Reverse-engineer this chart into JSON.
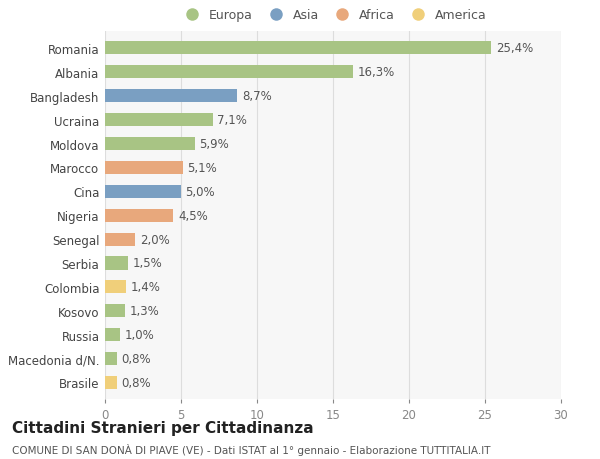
{
  "countries": [
    "Romania",
    "Albania",
    "Bangladesh",
    "Ucraina",
    "Moldova",
    "Marocco",
    "Cina",
    "Nigeria",
    "Senegal",
    "Serbia",
    "Colombia",
    "Kosovo",
    "Russia",
    "Macedonia d/N.",
    "Brasile"
  ],
  "values": [
    25.4,
    16.3,
    8.7,
    7.1,
    5.9,
    5.1,
    5.0,
    4.5,
    2.0,
    1.5,
    1.4,
    1.3,
    1.0,
    0.8,
    0.8
  ],
  "labels": [
    "25,4%",
    "16,3%",
    "8,7%",
    "7,1%",
    "5,9%",
    "5,1%",
    "5,0%",
    "4,5%",
    "2,0%",
    "1,5%",
    "1,4%",
    "1,3%",
    "1,0%",
    "0,8%",
    "0,8%"
  ],
  "regions": [
    "Europa",
    "Europa",
    "Asia",
    "Europa",
    "Europa",
    "Africa",
    "Asia",
    "Africa",
    "Africa",
    "Europa",
    "America",
    "Europa",
    "Europa",
    "Europa",
    "America"
  ],
  "region_colors": {
    "Europa": "#a8c484",
    "Asia": "#7a9fc2",
    "Africa": "#e8a87c",
    "America": "#f0cf7a"
  },
  "legend_order": [
    "Europa",
    "Asia",
    "Africa",
    "America"
  ],
  "xlim": [
    0,
    30
  ],
  "xticks": [
    0,
    5,
    10,
    15,
    20,
    25,
    30
  ],
  "title": "Cittadini Stranieri per Cittadinanza",
  "subtitle": "COMUNE DI SAN DONÀ DI PIAVE (VE) - Dati ISTAT al 1° gennaio - Elaborazione TUTTITALIA.IT",
  "bg_color": "#ffffff",
  "plot_bg_color": "#f7f7f7",
  "grid_color": "#dddddd",
  "bar_height": 0.55,
  "label_fontsize": 8.5,
  "tick_fontsize": 8.5,
  "title_fontsize": 11,
  "subtitle_fontsize": 7.5,
  "legend_fontsize": 9
}
